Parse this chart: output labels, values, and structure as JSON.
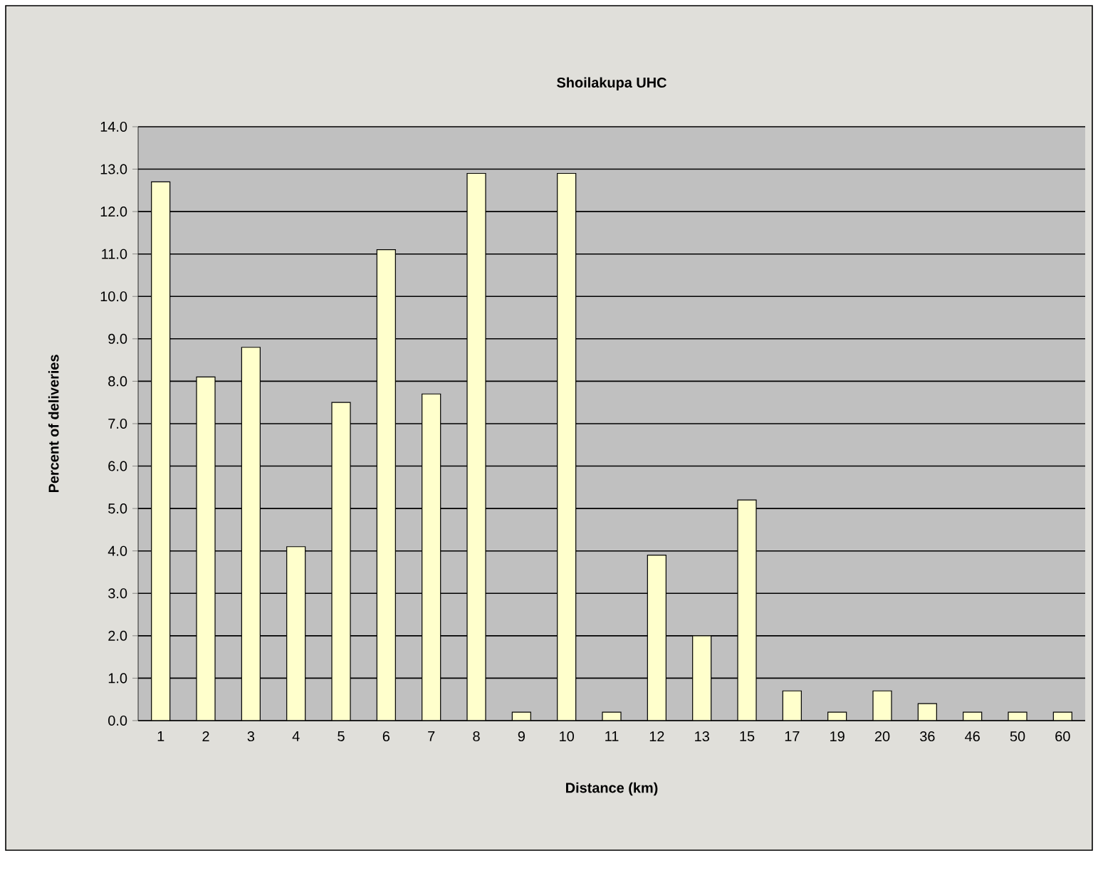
{
  "chart_data": {
    "type": "bar",
    "title": "Shoilakupa UHC",
    "xlabel": "Distance (km)",
    "ylabel": "Percent of deliveries",
    "categories": [
      "1",
      "2",
      "3",
      "4",
      "5",
      "6",
      "7",
      "8",
      "9",
      "10",
      "11",
      "12",
      "13",
      "15",
      "17",
      "19",
      "20",
      "36",
      "46",
      "50",
      "60"
    ],
    "values": [
      12.7,
      8.1,
      8.8,
      4.1,
      7.5,
      11.1,
      7.7,
      12.9,
      0.2,
      12.9,
      0.2,
      3.9,
      2.0,
      5.2,
      0.7,
      0.2,
      0.7,
      0.4,
      0.2,
      0.2,
      0.2
    ],
    "color": "#ffffcc",
    "ylim": [
      0,
      14
    ],
    "yticks": [
      {
        "value": 0,
        "label": "0.0"
      },
      {
        "value": 1,
        "label": "1.0"
      },
      {
        "value": 2,
        "label": "2.0"
      },
      {
        "value": 3,
        "label": "3.0"
      },
      {
        "value": 4,
        "label": "4.0"
      },
      {
        "value": 5,
        "label": "5.0"
      },
      {
        "value": 6,
        "label": "6.0"
      },
      {
        "value": 7,
        "label": "7.0"
      },
      {
        "value": 8,
        "label": "8.0"
      },
      {
        "value": 9,
        "label": "9.0"
      },
      {
        "value": 10,
        "label": "10.0"
      },
      {
        "value": 11,
        "label": "11.0"
      },
      {
        "value": 12,
        "label": "12.0"
      },
      {
        "value": 13,
        "label": "13.0"
      },
      {
        "value": 14,
        "label": "14.0"
      }
    ],
    "grid": "y"
  }
}
